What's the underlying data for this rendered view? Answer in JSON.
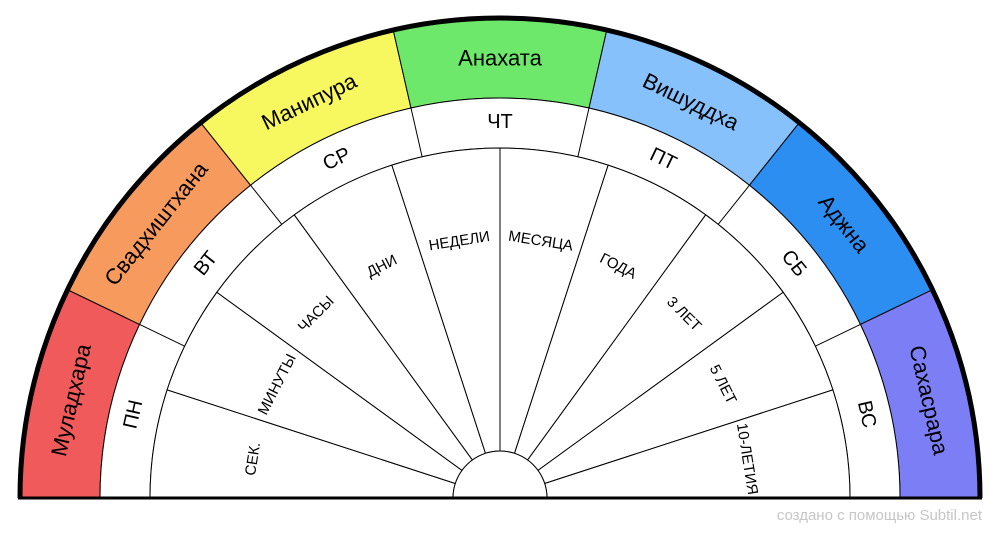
{
  "chakras": [
    {
      "label": "Муладхара",
      "color": "#f05a5a"
    },
    {
      "label": "Свадхиштхана",
      "color": "#f79a5e"
    },
    {
      "label": "Манипура",
      "color": "#f7f760"
    },
    {
      "label": "Анахата",
      "color": "#6ee86b"
    },
    {
      "label": "Вишуддха",
      "color": "#86c1fb"
    },
    {
      "label": "Аджна",
      "color": "#2d8ef2"
    },
    {
      "label": "Сахасрара",
      "color": "#7b7ef5"
    }
  ],
  "days": [
    "ПН",
    "ВТ",
    "СР",
    "ЧТ",
    "ПТ",
    "СБ",
    "ВС"
  ],
  "periods": [
    "СЕК.",
    "МИНУТЫ",
    "ЧАСЫ",
    "ДНИ",
    "НЕДЕЛИ",
    "МЕСЯЦА",
    "ГОДА",
    "3 ЛЕТ",
    "5 ЛЕТ",
    "10-ЛЕТИЯ"
  ],
  "watermark": "создано с помощью Subtil.net"
}
